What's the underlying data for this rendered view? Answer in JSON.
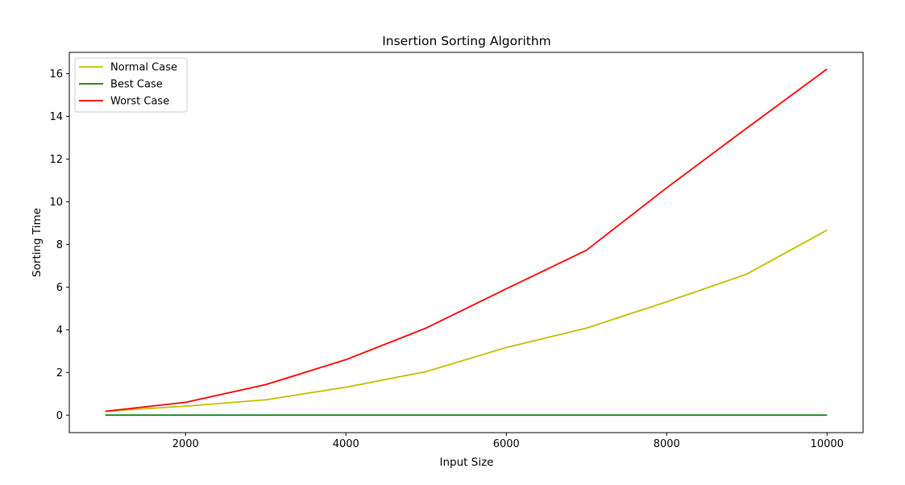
{
  "chart_data": {
    "type": "line",
    "title": "Insertion Sorting Algorithm",
    "xlabel": "Input Size",
    "ylabel": "Sorting Time",
    "x": [
      1000,
      2000,
      3000,
      4000,
      5000,
      6000,
      7000,
      8000,
      9000,
      10000
    ],
    "xticks": [
      2000,
      4000,
      6000,
      8000,
      10000
    ],
    "yticks": [
      0,
      2,
      4,
      6,
      8,
      10,
      12,
      14,
      16
    ],
    "xlim": [
      550,
      10450
    ],
    "ylim": [
      -0.82,
      17.0
    ],
    "grid": false,
    "legend_position": "upper-left",
    "series": [
      {
        "name": "Normal Case",
        "color": "#bfbf00",
        "values": [
          0.18,
          0.42,
          0.72,
          1.31,
          2.04,
          3.17,
          4.08,
          5.31,
          6.61,
          8.67
        ]
      },
      {
        "name": "Best Case",
        "color": "#008000",
        "values": [
          0.0,
          0.0,
          0.0,
          0.0,
          0.0,
          0.0,
          0.0,
          0.0,
          0.0,
          0.0
        ]
      },
      {
        "name": "Worst Case",
        "color": "#ff0000",
        "values": [
          0.18,
          0.6,
          1.43,
          2.6,
          4.08,
          5.92,
          7.73,
          10.65,
          13.45,
          16.22
        ]
      }
    ]
  }
}
